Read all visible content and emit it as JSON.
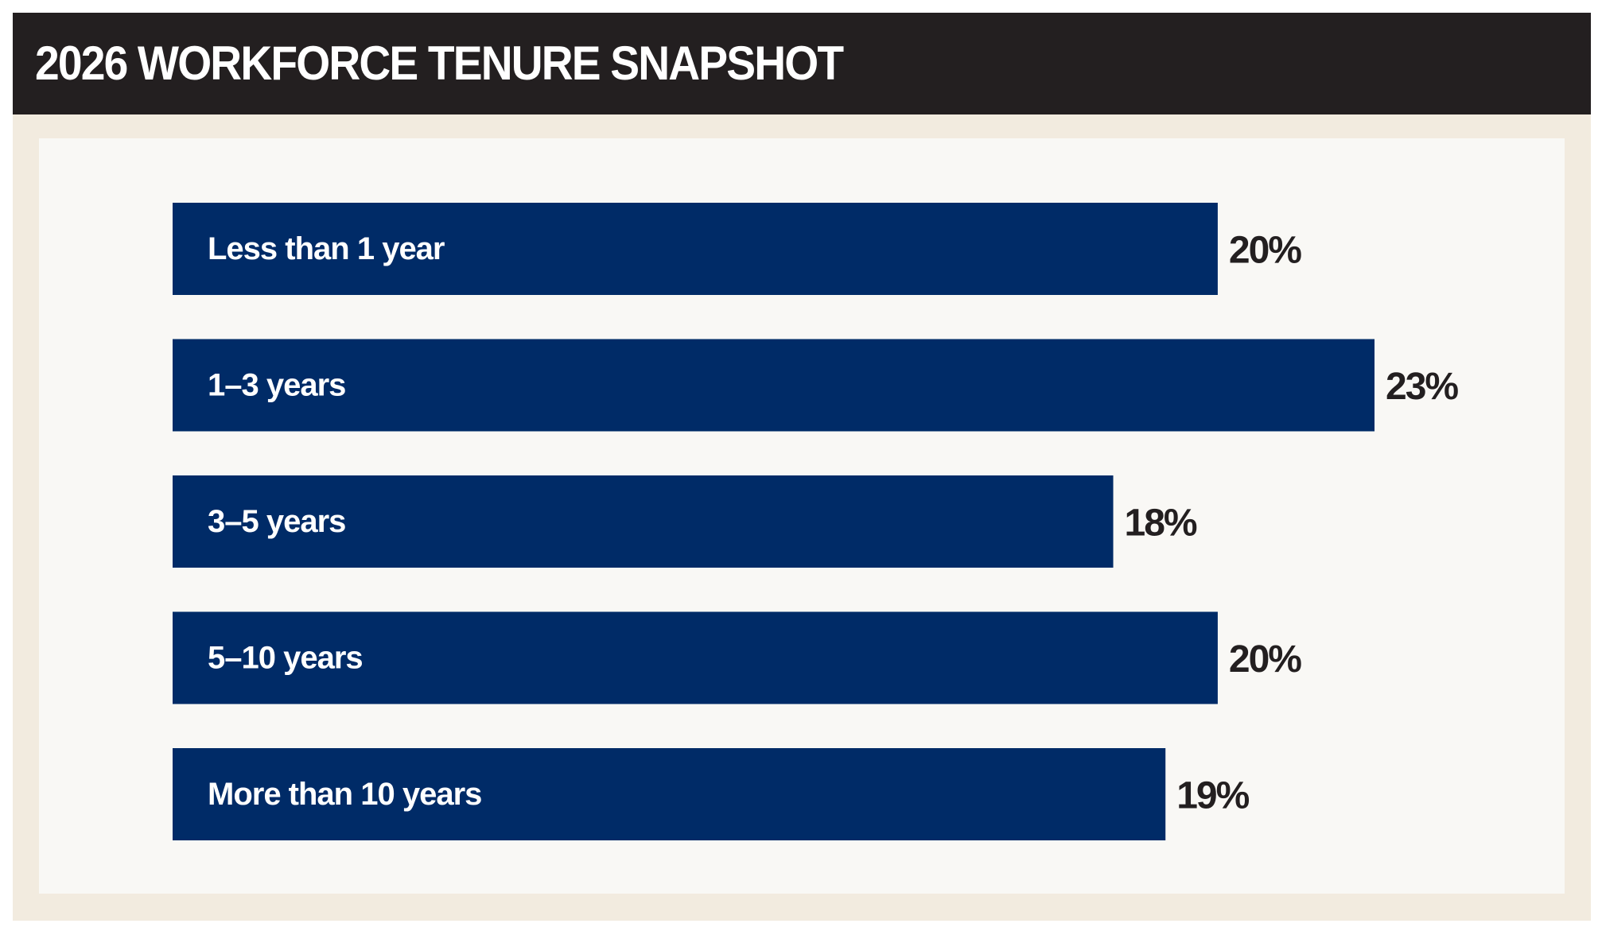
{
  "header": {
    "title": "2026 WORKFORCE TENURE SNAPSHOT"
  },
  "colors": {
    "title_bar": "#231f20",
    "title_text": "#ffffff",
    "frame": "#f2ebdf",
    "panel": "#f9f8f5",
    "bar": "#002b67",
    "bar_label": "#ffffff",
    "value_label": "#231f20"
  },
  "chart_data": {
    "type": "bar",
    "orientation": "horizontal",
    "title": "2026 WORKFORCE TENURE SNAPSHOT",
    "categories": [
      "Less than 1 year",
      "1–3 years",
      "3–5 years",
      "5–10 years",
      "More than 10 years"
    ],
    "values": [
      20,
      23,
      18,
      20,
      19
    ],
    "value_labels": [
      "20%",
      "23%",
      "18%",
      "20%",
      "19%"
    ],
    "unit": "%",
    "xlim": [
      0,
      23
    ],
    "grid": false,
    "legend": "none"
  }
}
